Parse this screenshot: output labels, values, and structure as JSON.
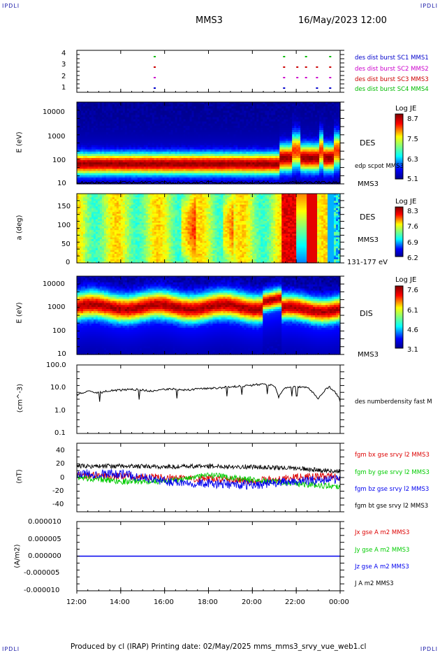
{
  "header": {
    "corner_tl": "IPDLI",
    "corner_tr": "IPDLI",
    "corner_bl": "IPDLI",
    "corner_br": "IPDLI",
    "spacecraft": "MMS3",
    "datetime": "16/May/2023 12:00"
  },
  "footer": {
    "text": "Produced by cl (IRAP)   Printing date: 02/May/2025   mms_mms3_srvy_vue_web1.cl"
  },
  "time_axis": {
    "ticks": [
      "12:00",
      "14:00",
      "16:00",
      "18:00",
      "20:00",
      "22:00",
      "00:00"
    ],
    "hours": [
      12,
      14,
      16,
      18,
      20,
      22,
      24
    ]
  },
  "colors": {
    "mms1": "#0000cc",
    "mms2": "#cc00cc",
    "mms3": "#cc0000",
    "mms4": "#00bb00",
    "bx": "#dd0000",
    "by": "#00cc00",
    "bz": "#0000ee",
    "bt": "#000000"
  },
  "panels": {
    "burst": {
      "yticks": [
        "4",
        "3",
        "2",
        "1"
      ],
      "legend": [
        {
          "text": "des dist burst SC1 MMS1",
          "color": "#0000cc"
        },
        {
          "text": "des dist burst SC2 MMS2",
          "color": "#cc00cc"
        },
        {
          "text": "des dist burst SC3 MMS3",
          "color": "#cc0000"
        },
        {
          "text": "des dist burst SC4 MMS4",
          "color": "#00bb00"
        }
      ]
    },
    "des_energy": {
      "ylabel": "E (eV)",
      "yticks": [
        "10000",
        "1000",
        "100",
        "10"
      ],
      "right_label": "DES",
      "overlay_label": "edp scpot MMS3",
      "bottom_label": "MMS3",
      "cbar_title": "Log JE",
      "cbar_ticks": [
        "8.7",
        "7.5",
        "6.3",
        "5.1"
      ]
    },
    "des_pitch": {
      "ylabel": "a (deg)",
      "yticks": [
        "150",
        "100",
        "50",
        "0"
      ],
      "right_label": "DES",
      "right_label2": "MMS3",
      "bottom_label": "131-177 eV",
      "cbar_title": "Log JE",
      "cbar_ticks": [
        "8.3",
        "7.6",
        "6.9",
        "6.2"
      ]
    },
    "dis_energy": {
      "ylabel": "E (eV)",
      "yticks": [
        "10000",
        "1000",
        "100",
        "10"
      ],
      "right_label": "DIS",
      "bottom_label": "MMS3",
      "cbar_title": "Log JE",
      "cbar_ticks": [
        "7.6",
        "6.1",
        "4.6",
        "3.1"
      ]
    },
    "density": {
      "ylabel": "(cm^-3)",
      "yticks": [
        "100.0",
        "10.0",
        "1.0",
        "0.1"
      ],
      "legend": "des numberdensity fast M"
    },
    "bfield": {
      "ylabel": "(nT)",
      "yticks": [
        "40",
        "20",
        "0",
        "-20",
        "-40"
      ],
      "legend": [
        {
          "text": "fgm bx gse srvy l2 MMS3",
          "color": "#dd0000"
        },
        {
          "text": "fgm by gse srvy l2 MMS3",
          "color": "#00cc00"
        },
        {
          "text": "fgm bz gse srvy l2 MMS3",
          "color": "#0000ee"
        },
        {
          "text": "fgm bt gse srvy l2 MMS3",
          "color": "#000000"
        }
      ]
    },
    "current": {
      "ylabel": "(A/m2)",
      "yticks": [
        "0.000010",
        "0.000005",
        "0.000000",
        "-0.000005",
        "-0.000010"
      ],
      "legend": [
        {
          "text": "Jx gse A m2 MMS3",
          "color": "#dd0000"
        },
        {
          "text": "Jy gse A m2 MMS3",
          "color": "#00cc00"
        },
        {
          "text": "Jz gse A m2 MMS3",
          "color": "#0000ee"
        },
        {
          "text": "J A m2 MMS3",
          "color": "#000000"
        }
      ]
    }
  },
  "chart_data": [
    {
      "type": "scatter",
      "panel": "burst",
      "x_unit": "hour",
      "series": [
        {
          "name": "des dist burst SC1 MMS1",
          "level": 1,
          "x": [
            15.5,
            21.4,
            22.9,
            23.5
          ]
        },
        {
          "name": "des dist burst SC2 MMS2",
          "level": 2,
          "x": [
            15.5,
            21.4,
            22.0,
            22.4,
            22.9,
            23.5
          ]
        },
        {
          "name": "des dist burst SC3 MMS3",
          "level": 3,
          "x": [
            15.5,
            21.4,
            22.0,
            22.4,
            22.9,
            23.5
          ]
        },
        {
          "name": "des dist burst SC4 MMS4",
          "level": 4,
          "x": [
            15.5,
            21.4,
            22.4,
            23.5
          ]
        }
      ]
    },
    {
      "type": "heatmap",
      "panel": "des_energy",
      "ylim": [
        10,
        30000
      ],
      "y_log": true,
      "peak_energy_eV": 70,
      "zlim": [
        5.1,
        8.7
      ]
    },
    {
      "type": "heatmap",
      "panel": "des_pitch",
      "ylim": [
        0,
        180
      ],
      "zlim": [
        6.2,
        8.3
      ]
    },
    {
      "type": "heatmap",
      "panel": "dis_energy",
      "ylim": [
        10,
        20000
      ],
      "y_log": true,
      "peak_energy_eV": 1000,
      "zlim": [
        3.1,
        7.6
      ]
    },
    {
      "type": "line",
      "panel": "density",
      "y_log": true,
      "ylim": [
        0.1,
        100
      ],
      "series": [
        {
          "name": "des numberdensity fast M",
          "x": [
            12.0,
            12.5,
            13.0,
            13.5,
            14.0,
            14.5,
            15.0,
            15.5,
            16.0,
            16.5,
            17.0,
            17.5,
            18.0,
            18.5,
            19.0,
            19.5,
            20.0,
            20.5,
            21.0,
            21.2,
            21.5,
            22.0,
            22.5,
            23.0,
            23.5,
            24.0
          ],
          "values": [
            5.0,
            7.0,
            6.0,
            7.5,
            8.0,
            8.5,
            8.0,
            7.0,
            8.5,
            9.0,
            8.0,
            9.0,
            9.5,
            10.0,
            11.0,
            12.0,
            13.0,
            15.0,
            12.0,
            4.0,
            10.0,
            11.0,
            10.0,
            3.0,
            11.0,
            2.5
          ]
        }
      ]
    },
    {
      "type": "line",
      "panel": "bfield",
      "ylim": [
        -45,
        45
      ],
      "series": [
        {
          "name": "fgm bx gse srvy l2 MMS3",
          "x": [
            12,
            14,
            16,
            18,
            20,
            22,
            24
          ],
          "values": [
            3,
            2,
            0,
            -2,
            -5,
            0,
            2
          ]
        },
        {
          "name": "fgm by gse srvy l2 MMS3",
          "x": [
            12,
            14,
            16,
            18,
            20,
            22,
            24
          ],
          "values": [
            0,
            -5,
            -5,
            3,
            -3,
            -8,
            -12
          ]
        },
        {
          "name": "fgm bz gse srvy l2 MMS3",
          "x": [
            12,
            14,
            16,
            18,
            20,
            22,
            24
          ],
          "values": [
            5,
            5,
            -5,
            -8,
            -10,
            -5,
            -2
          ]
        },
        {
          "name": "fgm bt gse srvy l2 MMS3",
          "x": [
            12,
            14,
            16,
            18,
            20,
            22,
            24
          ],
          "values": [
            15,
            15,
            14,
            15,
            14,
            12,
            8
          ]
        }
      ]
    },
    {
      "type": "line",
      "panel": "current",
      "ylim": [
        -1e-05,
        1e-05
      ],
      "series": [
        {
          "name": "J A m2 MMS3",
          "x": [
            12,
            24
          ],
          "values": [
            0,
            0
          ]
        }
      ]
    }
  ]
}
